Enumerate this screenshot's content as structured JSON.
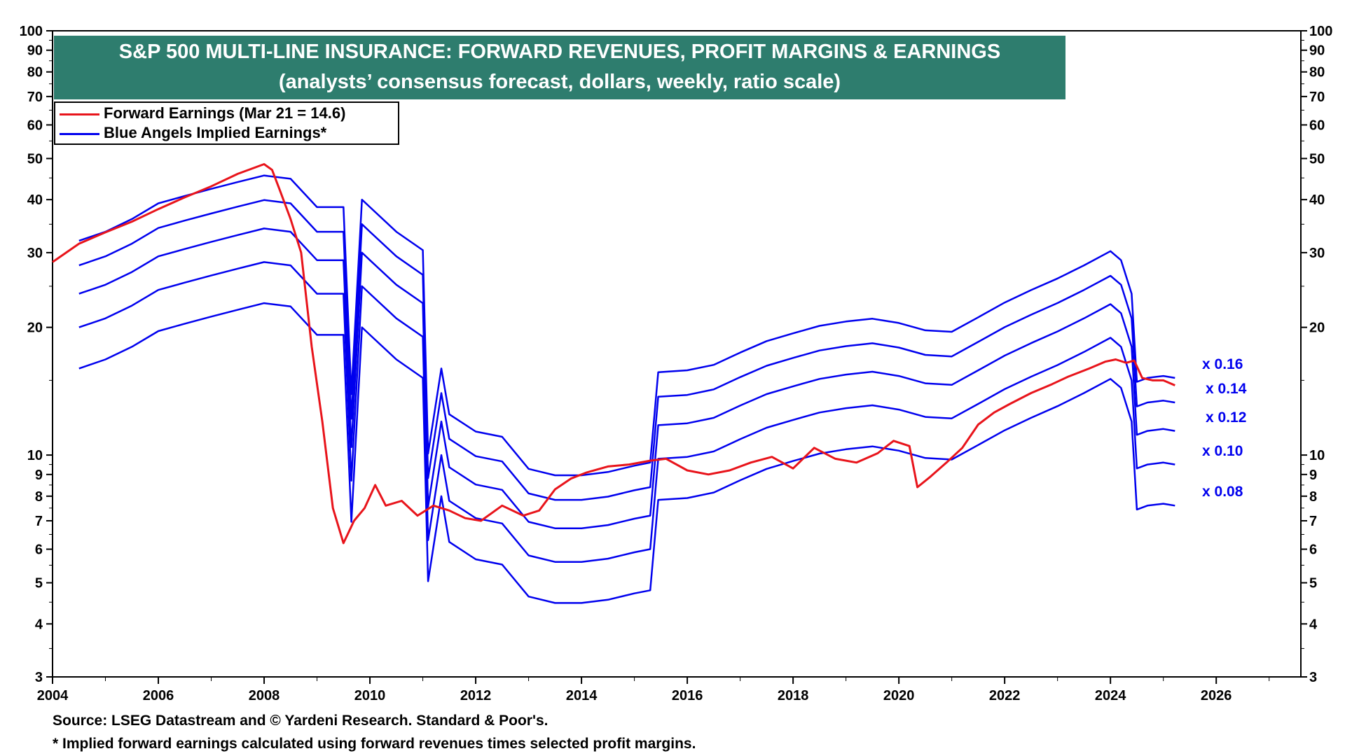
{
  "chart_data": {
    "type": "line",
    "title": "S&P 500 MULTI-LINE INSURANCE: FORWARD REVENUES, PROFIT MARGINS & EARNINGS",
    "subtitle": "(analysts’ consensus forecast, dollars, weekly, ratio scale)",
    "xlabel": "",
    "ylabel": "",
    "x_range": [
      2004,
      2027.6
    ],
    "x_ticks": [
      "2004",
      "2006",
      "2008",
      "2010",
      "2012",
      "2014",
      "2016",
      "2018",
      "2020",
      "2022",
      "2024",
      "2026"
    ],
    "y_scale": "log",
    "ylim": [
      3,
      100
    ],
    "y_ticks": [
      "3",
      "4",
      "5",
      "6",
      "7",
      "8",
      "9",
      "10",
      "20",
      "30",
      "40",
      "50",
      "60",
      "70",
      "80",
      "90",
      "100"
    ],
    "grid": false,
    "legend_position": "top-left",
    "colors": {
      "forward_earnings": "#e8141b",
      "implied": "#0000ee",
      "title_bg": "#2e7d6e"
    },
    "forward_earnings": {
      "name": "Forward Earnings (Mar 21 = 14.6)",
      "x": [
        2004.0,
        2004.5,
        2005.0,
        2005.5,
        2006.0,
        2006.5,
        2007.0,
        2007.5,
        2008.0,
        2008.15,
        2008.3,
        2008.5,
        2008.7,
        2008.9,
        2009.1,
        2009.3,
        2009.5,
        2009.7,
        2009.9,
        2010.1,
        2010.3,
        2010.6,
        2010.9,
        2011.2,
        2011.5,
        2011.8,
        2012.1,
        2012.5,
        2012.9,
        2013.2,
        2013.5,
        2013.8,
        2014.1,
        2014.5,
        2014.9,
        2015.3,
        2015.6,
        2016.0,
        2016.4,
        2016.8,
        2017.2,
        2017.6,
        2018.0,
        2018.4,
        2018.8,
        2019.2,
        2019.6,
        2019.9,
        2020.2,
        2020.35,
        2020.6,
        2020.9,
        2021.2,
        2021.5,
        2021.8,
        2022.1,
        2022.5,
        2022.9,
        2023.2,
        2023.6,
        2023.9,
        2024.1,
        2024.3,
        2024.45,
        2024.6,
        2024.8,
        2025.0,
        2025.22
      ],
      "y": [
        28.5,
        31.5,
        33.5,
        35.5,
        38.0,
        40.5,
        43.0,
        46.0,
        48.5,
        47.0,
        42.0,
        36.0,
        30.0,
        18.0,
        12.0,
        7.5,
        6.2,
        7.0,
        7.5,
        8.5,
        7.6,
        7.8,
        7.2,
        7.6,
        7.4,
        7.1,
        7.0,
        7.6,
        7.2,
        7.4,
        8.3,
        8.8,
        9.1,
        9.4,
        9.5,
        9.7,
        9.8,
        9.2,
        9.0,
        9.2,
        9.6,
        9.9,
        9.3,
        10.4,
        9.8,
        9.6,
        10.1,
        10.8,
        10.5,
        8.4,
        8.9,
        9.6,
        10.4,
        11.8,
        12.6,
        13.2,
        14.0,
        14.7,
        15.3,
        16.0,
        16.6,
        16.8,
        16.5,
        16.7,
        15.2,
        15.0,
        15.0,
        14.6
      ]
    },
    "implied_earnings": {
      "name": "Blue Angels Implied Earnings*",
      "x": [
        2004.5,
        2005.0,
        2005.5,
        2006.0,
        2006.5,
        2007.0,
        2007.5,
        2008.0,
        2008.5,
        2009.0,
        2009.5,
        2009.65,
        2009.85,
        2010.0,
        2010.5,
        2011.0,
        2011.1,
        2011.35,
        2011.5,
        2012.0,
        2012.5,
        2013.0,
        2013.5,
        2014.0,
        2014.5,
        2015.0,
        2015.3,
        2015.45,
        2016.0,
        2016.5,
        2017.0,
        2017.5,
        2018.0,
        2018.5,
        2019.0,
        2019.5,
        2020.0,
        2020.5,
        2021.0,
        2021.5,
        2022.0,
        2022.5,
        2023.0,
        2023.5,
        2024.0,
        2024.2,
        2024.4,
        2024.5,
        2024.7,
        2025.0,
        2025.22
      ],
      "base": [
        20.0,
        21.0,
        22.5,
        24.5,
        25.5,
        26.5,
        27.5,
        28.5,
        28.0,
        24.0,
        24.0,
        8.7,
        25.0,
        24.0,
        21.0,
        19.0,
        6.3,
        10.0,
        7.8,
        7.1,
        6.9,
        5.8,
        5.6,
        5.6,
        5.7,
        5.9,
        6.0,
        9.8,
        9.9,
        10.2,
        10.9,
        11.6,
        12.1,
        12.6,
        12.9,
        13.1,
        12.8,
        12.3,
        12.2,
        13.2,
        14.3,
        15.3,
        16.3,
        17.5,
        18.9,
        18.0,
        15.0,
        9.3,
        9.5,
        9.6,
        9.5
      ],
      "multipliers": [
        "x 0.08",
        "x 0.10",
        "x 0.12",
        "x 0.14",
        "x 0.16"
      ],
      "factors": [
        0.8,
        1.0,
        1.2,
        1.4,
        1.6
      ]
    }
  },
  "legend": {
    "forward": "Forward Earnings (Mar 21 = 14.6)",
    "implied": "Blue Angels Implied Earnings*"
  },
  "footnotes": {
    "source": "Source: LSEG Datastream and © Yardeni Research. Standard & Poor's.",
    "note": "* Implied forward earnings calculated using forward revenues times selected profit margins."
  }
}
